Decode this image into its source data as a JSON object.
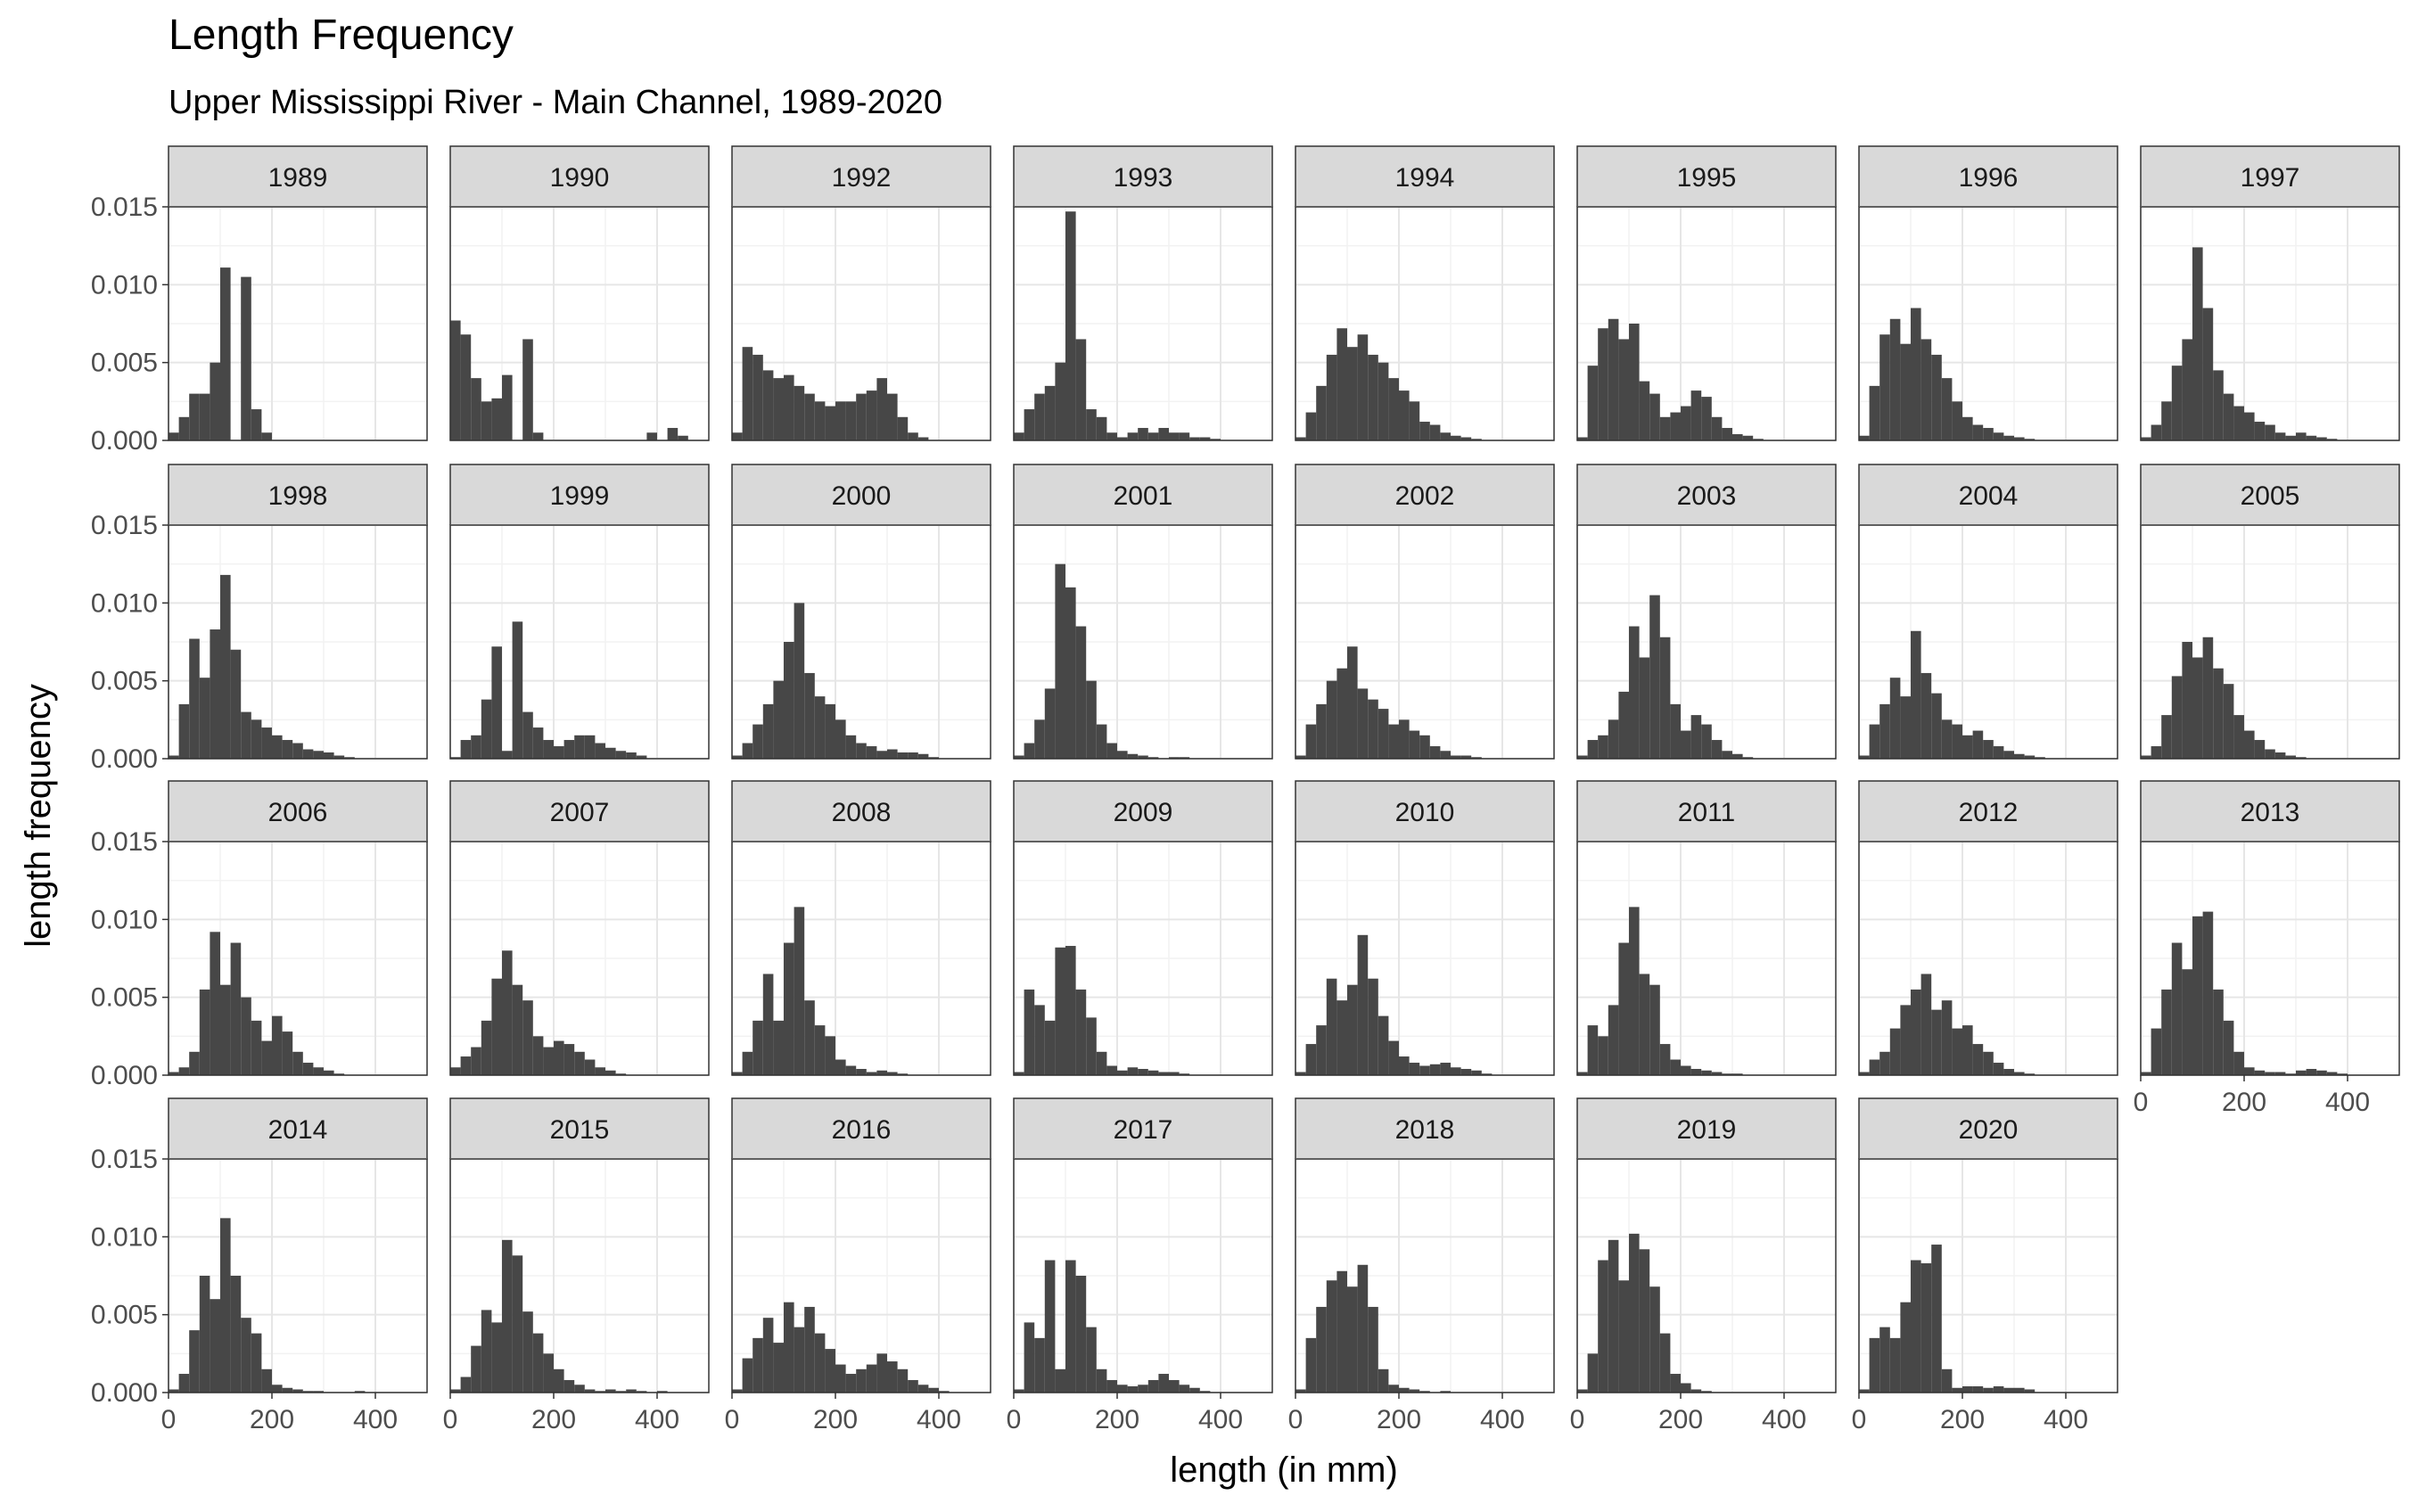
{
  "chart_data": {
    "type": "histogram",
    "title": "Length Frequency",
    "subtitle": "Upper Mississippi River - Main Channel, 1989-2020",
    "xlabel": "length (in mm)",
    "ylabel": "length frequency",
    "xlim": [
      0,
      500
    ],
    "ylim": [
      0,
      0.015
    ],
    "xticks": [
      0,
      200,
      400
    ],
    "yticks": [
      0.0,
      0.005,
      0.01,
      0.015
    ],
    "ytick_labels": [
      "0.000",
      "0.005",
      "0.010",
      "0.015"
    ],
    "bin_width": 20,
    "grid": true,
    "bar_color": "#474747",
    "strip_fill": "#d9d9d9",
    "panels": [
      {
        "label": "1989",
        "values": [
          0.0005,
          0.0015,
          0.003,
          0.003,
          0.005,
          0.0111,
          0.0,
          0.0105,
          0.002,
          0.0005,
          0,
          0,
          0,
          0,
          0,
          0,
          0,
          0,
          0,
          0,
          0,
          0,
          0,
          0,
          0
        ]
      },
      {
        "label": "1990",
        "values": [
          0.0077,
          0.0068,
          0.004,
          0.0025,
          0.0027,
          0.0042,
          0.0,
          0.0065,
          0.0005,
          0,
          0,
          0,
          0,
          0,
          0,
          0,
          0,
          0,
          0,
          0.0005,
          0,
          0.0008,
          0.0003,
          0,
          0
        ]
      },
      {
        "label": "1992",
        "values": [
          0.0005,
          0.006,
          0.0055,
          0.0045,
          0.004,
          0.0042,
          0.0035,
          0.003,
          0.0025,
          0.0022,
          0.0025,
          0.0025,
          0.003,
          0.0032,
          0.004,
          0.003,
          0.0015,
          0.0005,
          0.0002,
          0,
          0,
          0,
          0,
          0,
          0
        ]
      },
      {
        "label": "1993",
        "values": [
          0.0005,
          0.002,
          0.003,
          0.0035,
          0.005,
          0.0147,
          0.0065,
          0.002,
          0.0015,
          0.0005,
          0.0002,
          0.0005,
          0.0008,
          0.0005,
          0.0008,
          0.0005,
          0.0005,
          0.0002,
          0.0002,
          0.0001,
          0,
          0,
          0,
          0,
          0
        ]
      },
      {
        "label": "1994",
        "values": [
          0.0002,
          0.0018,
          0.0035,
          0.0055,
          0.0072,
          0.006,
          0.0068,
          0.0055,
          0.005,
          0.004,
          0.0032,
          0.0025,
          0.0012,
          0.001,
          0.0005,
          0.0003,
          0.0002,
          0.0001,
          0,
          0,
          0,
          0,
          0,
          0,
          0
        ]
      },
      {
        "label": "1995",
        "values": [
          0.0002,
          0.0048,
          0.0072,
          0.0078,
          0.0065,
          0.0075,
          0.0038,
          0.003,
          0.0015,
          0.0018,
          0.0022,
          0.0032,
          0.0028,
          0.0015,
          0.0008,
          0.0004,
          0.0003,
          0.0001,
          0,
          0,
          0,
          0,
          0,
          0,
          0
        ]
      },
      {
        "label": "1996",
        "values": [
          0.0003,
          0.0035,
          0.0068,
          0.0078,
          0.0062,
          0.0085,
          0.0065,
          0.0055,
          0.004,
          0.0025,
          0.0015,
          0.001,
          0.0008,
          0.0005,
          0.0003,
          0.0002,
          0.0001,
          0,
          0,
          0,
          0,
          0,
          0,
          0,
          0
        ]
      },
      {
        "label": "1997",
        "values": [
          0.0002,
          0.001,
          0.0025,
          0.0048,
          0.0065,
          0.0124,
          0.0085,
          0.0045,
          0.003,
          0.0022,
          0.0018,
          0.0012,
          0.001,
          0.0005,
          0.0003,
          0.0005,
          0.0003,
          0.0002,
          0.0001,
          0,
          0,
          0,
          0,
          0,
          0
        ]
      },
      {
        "label": "1998",
        "values": [
          0.0002,
          0.0035,
          0.0077,
          0.0052,
          0.0083,
          0.0118,
          0.007,
          0.003,
          0.0025,
          0.002,
          0.0015,
          0.0012,
          0.001,
          0.0006,
          0.0005,
          0.0004,
          0.0002,
          0.0001,
          0,
          0,
          0,
          0,
          0,
          0,
          0
        ]
      },
      {
        "label": "1999",
        "values": [
          0.0001,
          0.0012,
          0.0015,
          0.0038,
          0.0072,
          0.0005,
          0.0088,
          0.003,
          0.002,
          0.0012,
          0.0008,
          0.0012,
          0.0015,
          0.0015,
          0.001,
          0.0007,
          0.0005,
          0.0004,
          0.0002,
          0,
          0,
          0,
          0,
          0,
          0
        ]
      },
      {
        "label": "2000",
        "values": [
          0.0002,
          0.001,
          0.0022,
          0.0035,
          0.005,
          0.0075,
          0.01,
          0.0055,
          0.004,
          0.0035,
          0.0025,
          0.0015,
          0.001,
          0.0008,
          0.0005,
          0.0006,
          0.0004,
          0.0004,
          0.0003,
          0.0001,
          0,
          0,
          0,
          0,
          0
        ]
      },
      {
        "label": "2001",
        "values": [
          0.0002,
          0.001,
          0.0025,
          0.0045,
          0.0125,
          0.011,
          0.0085,
          0.005,
          0.0022,
          0.001,
          0.0005,
          0.0003,
          0.0002,
          0.0001,
          0,
          0.0001,
          0.0001,
          0,
          0,
          0,
          0,
          0,
          0,
          0,
          0
        ]
      },
      {
        "label": "2002",
        "values": [
          0.0002,
          0.0022,
          0.0035,
          0.005,
          0.0058,
          0.0072,
          0.0045,
          0.0038,
          0.0032,
          0.0022,
          0.0025,
          0.0018,
          0.0015,
          0.0008,
          0.0005,
          0.0002,
          0.0002,
          0.0001,
          0,
          0,
          0,
          0,
          0,
          0,
          0
        ]
      },
      {
        "label": "2003",
        "values": [
          0.0002,
          0.0012,
          0.0015,
          0.0025,
          0.0043,
          0.0085,
          0.0065,
          0.0105,
          0.0078,
          0.0035,
          0.0018,
          0.0028,
          0.0022,
          0.0012,
          0.0005,
          0.0003,
          0.0001,
          0,
          0,
          0,
          0,
          0,
          0,
          0,
          0
        ]
      },
      {
        "label": "2004",
        "values": [
          0.0002,
          0.0022,
          0.0035,
          0.0052,
          0.004,
          0.0082,
          0.0055,
          0.0042,
          0.0025,
          0.0022,
          0.0015,
          0.0018,
          0.0012,
          0.0008,
          0.0005,
          0.0003,
          0.0002,
          0.0001,
          0,
          0,
          0,
          0,
          0,
          0,
          0
        ]
      },
      {
        "label": "2005",
        "values": [
          0.0002,
          0.0008,
          0.0028,
          0.0053,
          0.0075,
          0.0065,
          0.0078,
          0.0058,
          0.0048,
          0.0028,
          0.0018,
          0.0012,
          0.0006,
          0.0004,
          0.0002,
          0.0001,
          0,
          0,
          0,
          0,
          0,
          0,
          0,
          0,
          0
        ]
      },
      {
        "label": "2006",
        "values": [
          0.0002,
          0.0005,
          0.0015,
          0.0055,
          0.0092,
          0.0058,
          0.0085,
          0.005,
          0.0035,
          0.0022,
          0.0038,
          0.0028,
          0.0015,
          0.0008,
          0.0005,
          0.0003,
          0.0001,
          0,
          0,
          0,
          0,
          0,
          0,
          0,
          0
        ]
      },
      {
        "label": "2007",
        "values": [
          0.0005,
          0.0012,
          0.0018,
          0.0035,
          0.0062,
          0.008,
          0.0058,
          0.0048,
          0.0025,
          0.0018,
          0.0022,
          0.002,
          0.0015,
          0.001,
          0.0005,
          0.0003,
          0.0001,
          0,
          0,
          0,
          0,
          0,
          0,
          0,
          0
        ]
      },
      {
        "label": "2008",
        "values": [
          0.0002,
          0.0015,
          0.0035,
          0.0065,
          0.0035,
          0.0085,
          0.0108,
          0.0048,
          0.0032,
          0.0025,
          0.001,
          0.0006,
          0.0004,
          0.0002,
          0.0003,
          0.0002,
          0.0001,
          0,
          0,
          0,
          0,
          0,
          0,
          0,
          0
        ]
      },
      {
        "label": "2009",
        "values": [
          0.0002,
          0.0055,
          0.0045,
          0.0035,
          0.0082,
          0.0083,
          0.0055,
          0.0037,
          0.0015,
          0.0006,
          0.0003,
          0.0005,
          0.0004,
          0.0003,
          0.0002,
          0.0002,
          0.0001,
          0,
          0,
          0,
          0,
          0,
          0,
          0,
          0
        ]
      },
      {
        "label": "2010",
        "values": [
          0.0002,
          0.002,
          0.0032,
          0.0062,
          0.0048,
          0.0058,
          0.009,
          0.0062,
          0.0038,
          0.0022,
          0.0012,
          0.0008,
          0.0006,
          0.0007,
          0.0008,
          0.0005,
          0.0004,
          0.0003,
          0.0001,
          0,
          0,
          0,
          0,
          0,
          0
        ]
      },
      {
        "label": "2011",
        "values": [
          0.0002,
          0.0032,
          0.0025,
          0.0045,
          0.0085,
          0.0108,
          0.0065,
          0.0058,
          0.002,
          0.001,
          0.0006,
          0.0004,
          0.0003,
          0.0002,
          0.0001,
          0.0001,
          0,
          0,
          0,
          0,
          0,
          0,
          0,
          0,
          0
        ]
      },
      {
        "label": "2012",
        "values": [
          0.0002,
          0.001,
          0.0015,
          0.003,
          0.0045,
          0.0055,
          0.0065,
          0.0042,
          0.0048,
          0.003,
          0.0032,
          0.002,
          0.0015,
          0.0008,
          0.0004,
          0.0002,
          0.0001,
          0,
          0,
          0,
          0,
          0,
          0,
          0,
          0
        ]
      },
      {
        "label": "2013",
        "values": [
          0.0002,
          0.003,
          0.0055,
          0.0085,
          0.0068,
          0.0102,
          0.0105,
          0.0055,
          0.0035,
          0.0015,
          0.0005,
          0.0003,
          0.0002,
          0.0002,
          0.0001,
          0.0003,
          0.0004,
          0.0003,
          0.0002,
          0.0001,
          0,
          0,
          0,
          0,
          0
        ]
      },
      {
        "label": "2014",
        "values": [
          0.0002,
          0.0012,
          0.004,
          0.0075,
          0.006,
          0.0112,
          0.0075,
          0.0048,
          0.0038,
          0.0015,
          0.0005,
          0.0003,
          0.0002,
          0.0001,
          0.0001,
          0,
          0,
          0,
          0.0001,
          0,
          0,
          0,
          0,
          0,
          0
        ]
      },
      {
        "label": "2015",
        "values": [
          0.0002,
          0.001,
          0.003,
          0.0053,
          0.0045,
          0.0098,
          0.0088,
          0.0052,
          0.0038,
          0.0025,
          0.0015,
          0.0008,
          0.0005,
          0.0002,
          0.0001,
          0.0002,
          0.0001,
          0.0002,
          0.0001,
          0,
          0.0001,
          0,
          0,
          0,
          0
        ]
      },
      {
        "label": "2016",
        "values": [
          0.0002,
          0.0022,
          0.0035,
          0.0048,
          0.0032,
          0.0058,
          0.0042,
          0.0055,
          0.0038,
          0.0028,
          0.0018,
          0.0012,
          0.0015,
          0.0018,
          0.0025,
          0.002,
          0.0015,
          0.0008,
          0.0005,
          0.0003,
          0.0001,
          0,
          0,
          0,
          0
        ]
      },
      {
        "label": "2017",
        "values": [
          0.0002,
          0.0045,
          0.0035,
          0.0085,
          0.0015,
          0.0085,
          0.0075,
          0.0042,
          0.0015,
          0.0008,
          0.0005,
          0.0004,
          0.0005,
          0.0008,
          0.0012,
          0.0008,
          0.0005,
          0.0003,
          0.0001,
          0,
          0,
          0,
          0,
          0,
          0
        ]
      },
      {
        "label": "2018",
        "values": [
          0.0002,
          0.0035,
          0.0055,
          0.0072,
          0.0078,
          0.0068,
          0.0082,
          0.0055,
          0.0015,
          0.0005,
          0.0003,
          0.0002,
          0.0001,
          0,
          0.0001,
          0,
          0,
          0,
          0,
          0,
          0,
          0,
          0,
          0,
          0
        ]
      },
      {
        "label": "2019",
        "values": [
          0.0002,
          0.0025,
          0.0085,
          0.0098,
          0.0072,
          0.0102,
          0.0092,
          0.0068,
          0.0038,
          0.0012,
          0.0006,
          0.0002,
          0.0001,
          0,
          0,
          0,
          0,
          0,
          0,
          0,
          0,
          0,
          0,
          0,
          0
        ]
      },
      {
        "label": "2020",
        "values": [
          0.0002,
          0.0035,
          0.0042,
          0.0035,
          0.0058,
          0.0085,
          0.0083,
          0.0095,
          0.0015,
          0.0003,
          0.0004,
          0.0004,
          0.0003,
          0.0004,
          0.0003,
          0.0003,
          0.0002,
          0,
          0,
          0,
          0,
          0,
          0,
          0,
          0
        ]
      }
    ]
  }
}
